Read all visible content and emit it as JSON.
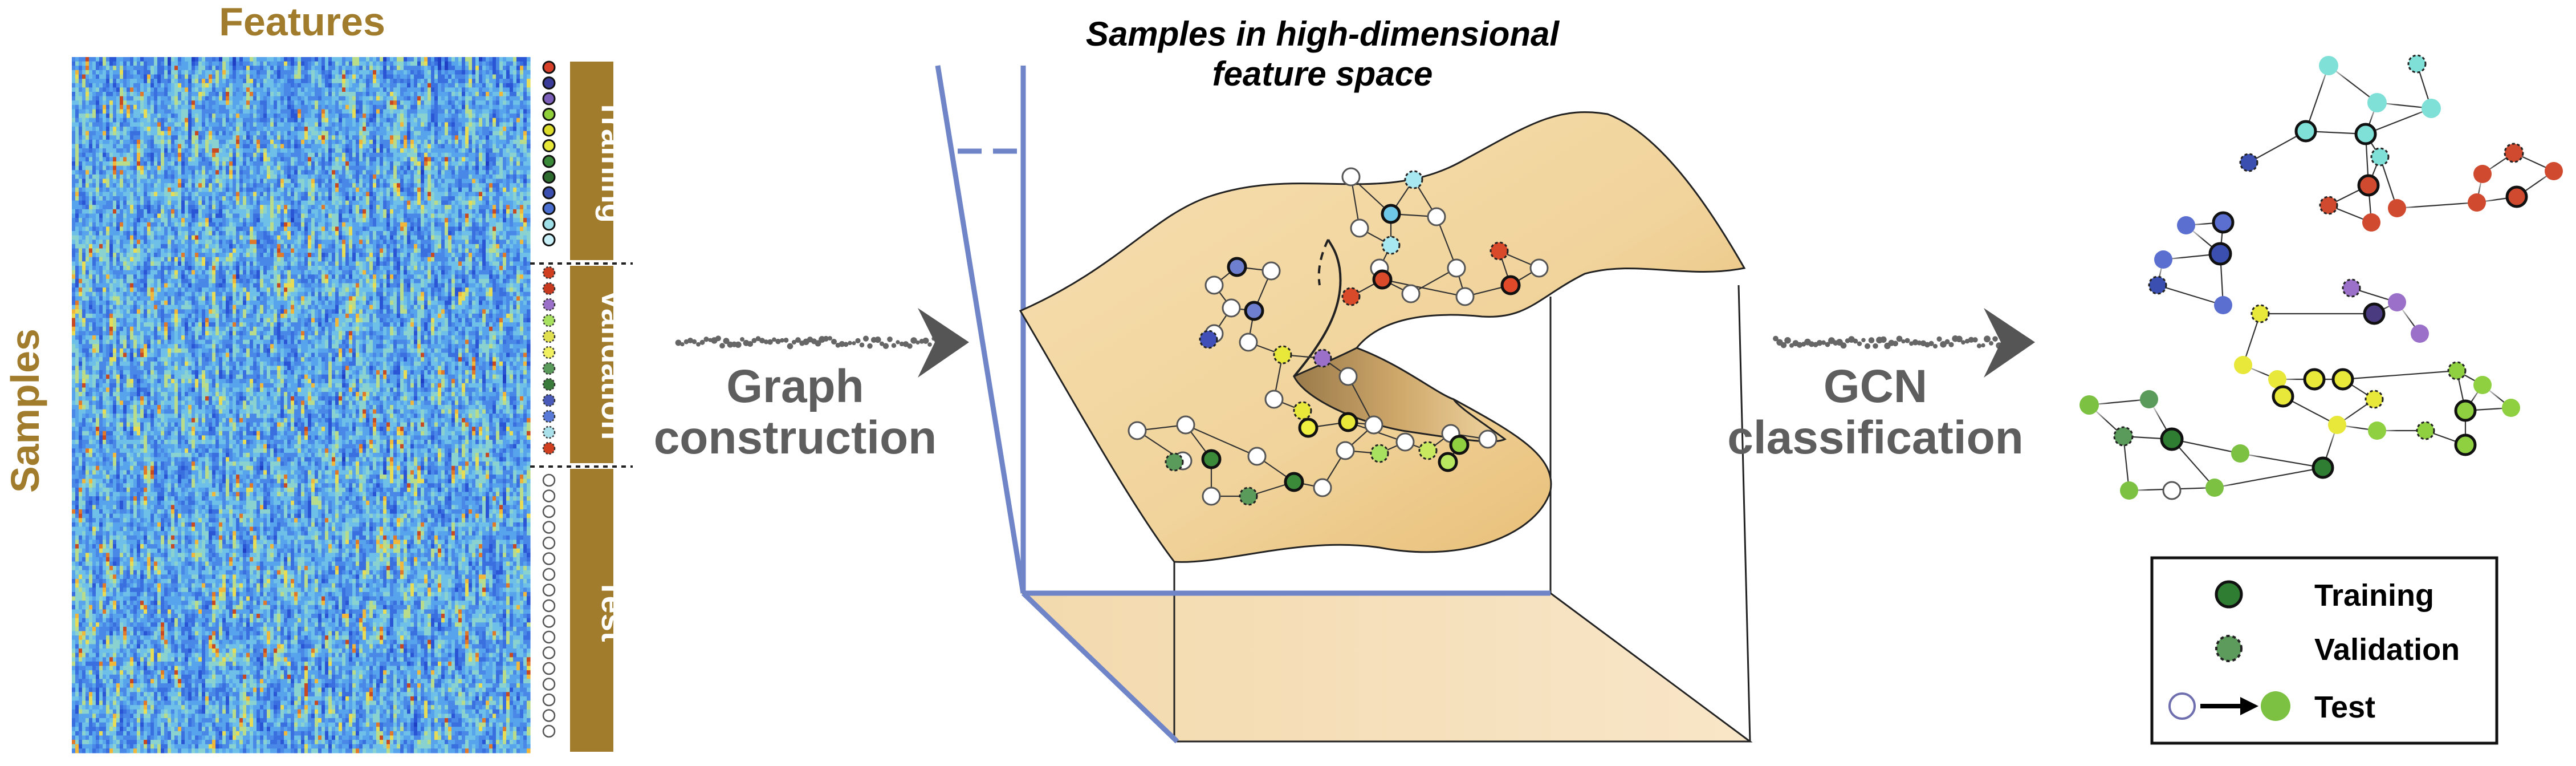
{
  "matrix": {
    "features_label": "Features",
    "samples_label": "Samples",
    "groups": [
      {
        "label": "Training"
      },
      {
        "label": "Validation"
      },
      {
        "label": "Test"
      }
    ]
  },
  "arrows": {
    "graph_construction_line1": "Graph",
    "graph_construction_line2": "construction",
    "gcn_line1": "GCN",
    "gcn_line2": "classification"
  },
  "space": {
    "title_line1": "Samples in high-dimensional",
    "title_line2": "feature space"
  },
  "legend": {
    "items": [
      {
        "label": "Training"
      },
      {
        "label": "Validation"
      },
      {
        "label": "Test"
      }
    ]
  },
  "colors": {
    "gold": "#a07c2c",
    "axis_blue": "#6f85c8",
    "manifold": "#edc98f",
    "arrow_grey": "#666666",
    "training_green": "#2e7d32",
    "validation_green": "#5d9b5d",
    "test_green": "#7cc142"
  }
}
